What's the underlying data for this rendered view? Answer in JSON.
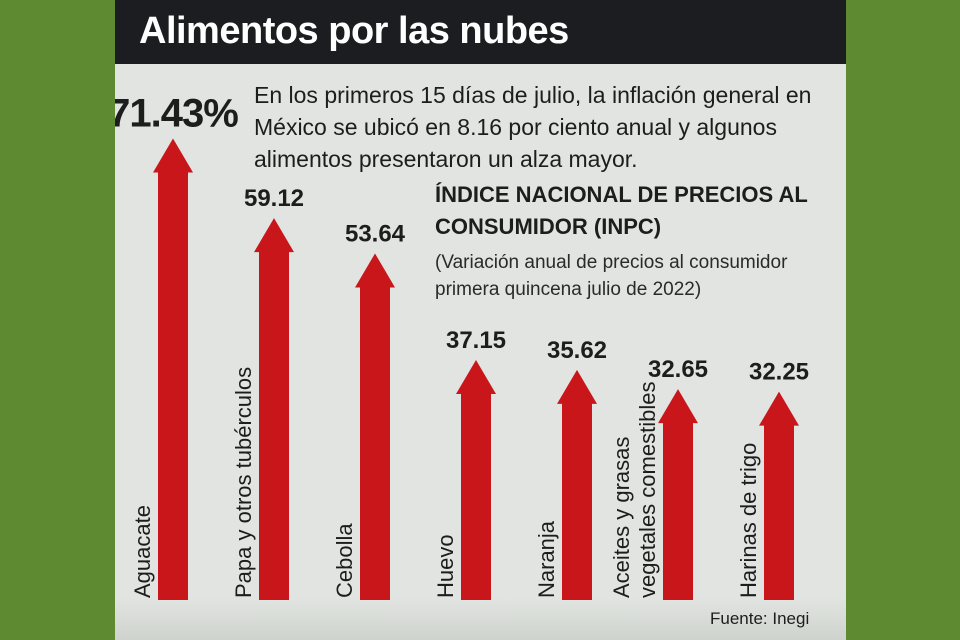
{
  "header": {
    "title": "Alimentos por las nubes"
  },
  "intro": "En los primeros 15  días de julio, la inflación general en México se ubicó en 8.16 por ciento anual y algunos alimentos presentaron un alza mayor.",
  "inpc_title": "ÍNDICE NACIONAL DE PRECIOS AL CONSUMIDOR (INPC)",
  "inpc_subtitle": "(Variación anual de precios al consumidor primera quincena julio de 2022)",
  "source": "Fuente: Inegi",
  "colors": {
    "arrow": "#c8161b",
    "header": "#1b1d21",
    "panel": "#e1e4e0",
    "background": "#5e8a32"
  },
  "chart_data": {
    "type": "bar",
    "orientation": "vertical-arrows",
    "categories": [
      "Aguacate",
      "Papa y otros tubérculos",
      "Cebolla",
      "Huevo",
      "Naranja",
      "Aceites y grasas vegetales comestibles",
      "Harinas de trigo"
    ],
    "category_lines": [
      [
        "Aguacate"
      ],
      [
        "Papa y otros tubérculos"
      ],
      [
        "Cebolla"
      ],
      [
        "Huevo"
      ],
      [
        "Naranja"
      ],
      [
        "Aceites y grasas",
        "vegetales comestibles"
      ],
      [
        "Harinas de trigo"
      ]
    ],
    "values": [
      71.43,
      59.12,
      53.64,
      37.15,
      35.62,
      32.65,
      32.25
    ],
    "value_labels": [
      "71.43%",
      "59.12",
      "53.64",
      "37.15",
      "35.62",
      "32.65",
      "32.25"
    ],
    "unit": "%",
    "title": "",
    "xlabel": "",
    "ylabel": "",
    "ylim": [
      0,
      75
    ],
    "grid": false,
    "legend": "none"
  }
}
